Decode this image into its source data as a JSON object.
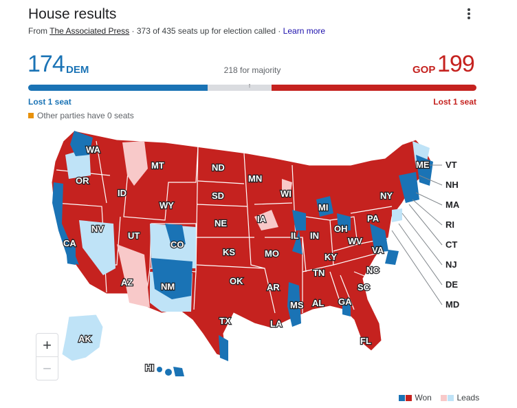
{
  "header": {
    "title": "House results",
    "source_prefix": "From",
    "source_name": "The Associated Press",
    "status": "· 373 of 435 seats up for election called ·",
    "learn_more": "Learn more",
    "menu_icon": "more-vert-icon"
  },
  "tally": {
    "dem_count": "174",
    "dem_label": "DEM",
    "gop_label": "GOP",
    "gop_count": "199",
    "majority_label": "218 for majority",
    "dem_note": "Lost 1 seat",
    "gop_note": "Lost 1 seat",
    "other_note": "Other parties have 0 seats",
    "dem_seats": 174,
    "gop_seats": 199,
    "total_seats": 435,
    "majority_seats": 218
  },
  "colors": {
    "dem_won": "#1a73b5",
    "dem_leads": "#bfe3f7",
    "gop_won": "#c5221f",
    "gop_leads": "#f8c9c9",
    "other": "#e8910c",
    "undecided": "#dadce0"
  },
  "map": {
    "state_labels": [
      "WA",
      "OR",
      "CA",
      "NV",
      "ID",
      "MT",
      "WY",
      "UT",
      "CO",
      "AZ",
      "NM",
      "ND",
      "SD",
      "NE",
      "KS",
      "OK",
      "TX",
      "MN",
      "IA",
      "MO",
      "AR",
      "LA",
      "WI",
      "IL",
      "MS",
      "AL",
      "MI",
      "IN",
      "KY",
      "TN",
      "OH",
      "WV",
      "VA",
      "NC",
      "SC",
      "GA",
      "FL",
      "PA",
      "NY",
      "ME",
      "AK",
      "HI"
    ],
    "side_labels": [
      "VT",
      "NH",
      "MA",
      "RI",
      "CT",
      "NJ",
      "DE",
      "MD"
    ]
  },
  "zoom": {
    "in": "+",
    "out": "−"
  },
  "legend": {
    "won": "Won",
    "leads": "Leads"
  }
}
